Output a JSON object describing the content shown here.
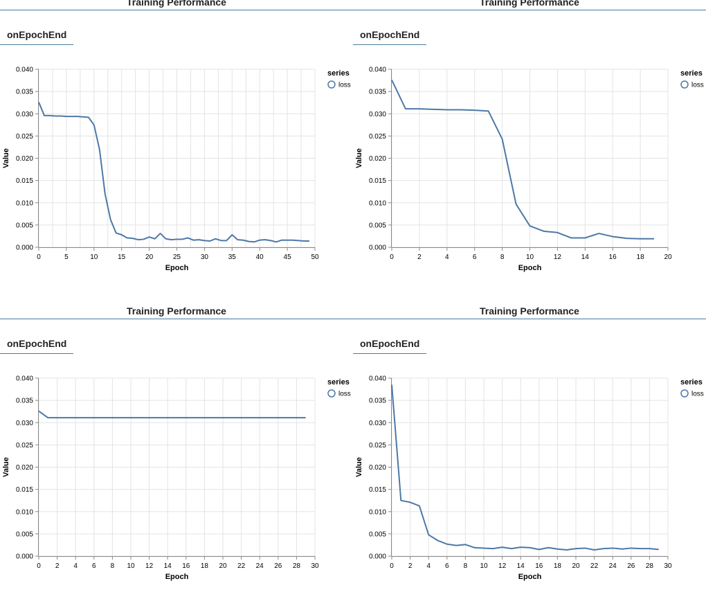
{
  "panels": [
    {
      "title": "Training Performance",
      "tab": "onEpochEnd",
      "chart_data": {
        "type": "line",
        "xlabel": "Epoch",
        "ylabel": "Value",
        "legend_title": "series",
        "legend_placement": "right",
        "xlim": [
          0,
          50
        ],
        "ylim": [
          0,
          0.04
        ],
        "xticks": [
          0,
          5,
          10,
          15,
          20,
          25,
          30,
          35,
          40,
          45,
          50
        ],
        "yticks": [
          "0.000",
          "0.005",
          "0.010",
          "0.015",
          "0.020",
          "0.025",
          "0.030",
          "0.035",
          "0.040"
        ],
        "grid": true,
        "series": [
          {
            "name": "loss",
            "color": "#4c78a8",
            "x": [
              0,
              1,
              2,
              3,
              4,
              5,
              6,
              7,
              8,
              9,
              10,
              11,
              12,
              13,
              14,
              15,
              16,
              17,
              18,
              19,
              20,
              21,
              22,
              23,
              24,
              25,
              26,
              27,
              28,
              29,
              30,
              31,
              32,
              33,
              34,
              35,
              36,
              37,
              38,
              39,
              40,
              41,
              42,
              43,
              44,
              45,
              46,
              47,
              48,
              49
            ],
            "y": [
              0.0326,
              0.0296,
              0.0296,
              0.0295,
              0.0295,
              0.0294,
              0.0294,
              0.0294,
              0.0293,
              0.0292,
              0.0275,
              0.022,
              0.012,
              0.0062,
              0.0032,
              0.0028,
              0.0021,
              0.002,
              0.0017,
              0.0018,
              0.0023,
              0.0019,
              0.0031,
              0.0019,
              0.0017,
              0.0018,
              0.0018,
              0.0021,
              0.0016,
              0.0017,
              0.0015,
              0.0014,
              0.0019,
              0.0015,
              0.0015,
              0.0028,
              0.0017,
              0.0016,
              0.0013,
              0.0012,
              0.0016,
              0.0017,
              0.0015,
              0.0012,
              0.0016,
              0.0016,
              0.0016,
              0.0015,
              0.0014,
              0.0014
            ]
          }
        ]
      }
    },
    {
      "title": "Training Performance",
      "tab": "onEpochEnd",
      "chart_data": {
        "type": "line",
        "xlabel": "Epoch",
        "ylabel": "Value",
        "legend_title": "series",
        "legend_placement": "right",
        "xlim": [
          0,
          20
        ],
        "ylim": [
          0,
          0.04
        ],
        "xticks": [
          0,
          2,
          4,
          6,
          8,
          10,
          12,
          14,
          16,
          18,
          20
        ],
        "yticks": [
          "0.000",
          "0.005",
          "0.010",
          "0.015",
          "0.020",
          "0.025",
          "0.030",
          "0.035",
          "0.040"
        ],
        "grid": true,
        "series": [
          {
            "name": "loss",
            "color": "#4c78a8",
            "x": [
              0,
              1,
              2,
              3,
              4,
              5,
              6,
              7,
              8,
              9,
              10,
              11,
              12,
              13,
              14,
              15,
              16,
              17,
              18,
              19
            ],
            "y": [
              0.0376,
              0.0311,
              0.0311,
              0.031,
              0.0309,
              0.0309,
              0.0308,
              0.0306,
              0.0243,
              0.0097,
              0.0048,
              0.0036,
              0.0033,
              0.0021,
              0.0021,
              0.0031,
              0.0024,
              0.002,
              0.0019,
              0.0019
            ]
          }
        ]
      }
    },
    {
      "title": "Training Performance",
      "tab": "onEpochEnd",
      "chart_data": {
        "type": "line",
        "xlabel": "Epoch",
        "ylabel": "Value",
        "legend_title": "series",
        "legend_placement": "right",
        "xlim": [
          0,
          30
        ],
        "ylim": [
          0,
          0.04
        ],
        "xticks": [
          0,
          2,
          4,
          6,
          8,
          10,
          12,
          14,
          16,
          18,
          20,
          22,
          24,
          26,
          28,
          30
        ],
        "yticks": [
          "0.000",
          "0.005",
          "0.010",
          "0.015",
          "0.020",
          "0.025",
          "0.030",
          "0.035",
          "0.040"
        ],
        "grid": true,
        "series": [
          {
            "name": "loss",
            "color": "#4c78a8",
            "x": [
              0,
              1,
              2,
              3,
              4,
              5,
              6,
              7,
              8,
              9,
              10,
              11,
              12,
              13,
              14,
              15,
              16,
              17,
              18,
              19,
              20,
              21,
              22,
              23,
              24,
              25,
              26,
              27,
              28,
              29
            ],
            "y": [
              0.0326,
              0.0311,
              0.0311,
              0.0311,
              0.0311,
              0.0311,
              0.0311,
              0.0311,
              0.0311,
              0.0311,
              0.0311,
              0.0311,
              0.0311,
              0.0311,
              0.0311,
              0.0311,
              0.0311,
              0.0311,
              0.0311,
              0.0311,
              0.0311,
              0.0311,
              0.0311,
              0.0311,
              0.0311,
              0.0311,
              0.0311,
              0.0311,
              0.0311,
              0.0311
            ]
          }
        ]
      }
    },
    {
      "title": "Training Performance",
      "tab": "onEpochEnd",
      "chart_data": {
        "type": "line",
        "xlabel": "Epoch",
        "ylabel": "Value",
        "legend_title": "series",
        "legend_placement": "right",
        "xlim": [
          0,
          30
        ],
        "ylim": [
          0,
          0.04
        ],
        "xticks": [
          0,
          2,
          4,
          6,
          8,
          10,
          12,
          14,
          16,
          18,
          20,
          22,
          24,
          26,
          28,
          30
        ],
        "yticks": [
          "0.000",
          "0.005",
          "0.010",
          "0.015",
          "0.020",
          "0.025",
          "0.030",
          "0.035",
          "0.040"
        ],
        "grid": true,
        "series": [
          {
            "name": "loss",
            "color": "#4c78a8",
            "x": [
              0,
              1,
              2,
              3,
              4,
              5,
              6,
              7,
              8,
              9,
              10,
              11,
              12,
              13,
              14,
              15,
              16,
              17,
              18,
              19,
              20,
              21,
              22,
              23,
              24,
              25,
              26,
              27,
              28,
              29
            ],
            "y": [
              0.0385,
              0.0125,
              0.0121,
              0.0113,
              0.0048,
              0.0035,
              0.0027,
              0.0024,
              0.0026,
              0.0019,
              0.0018,
              0.0017,
              0.002,
              0.0017,
              0.002,
              0.0019,
              0.0015,
              0.0019,
              0.0016,
              0.0014,
              0.0017,
              0.0018,
              0.0014,
              0.0017,
              0.0018,
              0.0016,
              0.0018,
              0.0017,
              0.0017,
              0.0015
            ]
          }
        ]
      }
    }
  ]
}
